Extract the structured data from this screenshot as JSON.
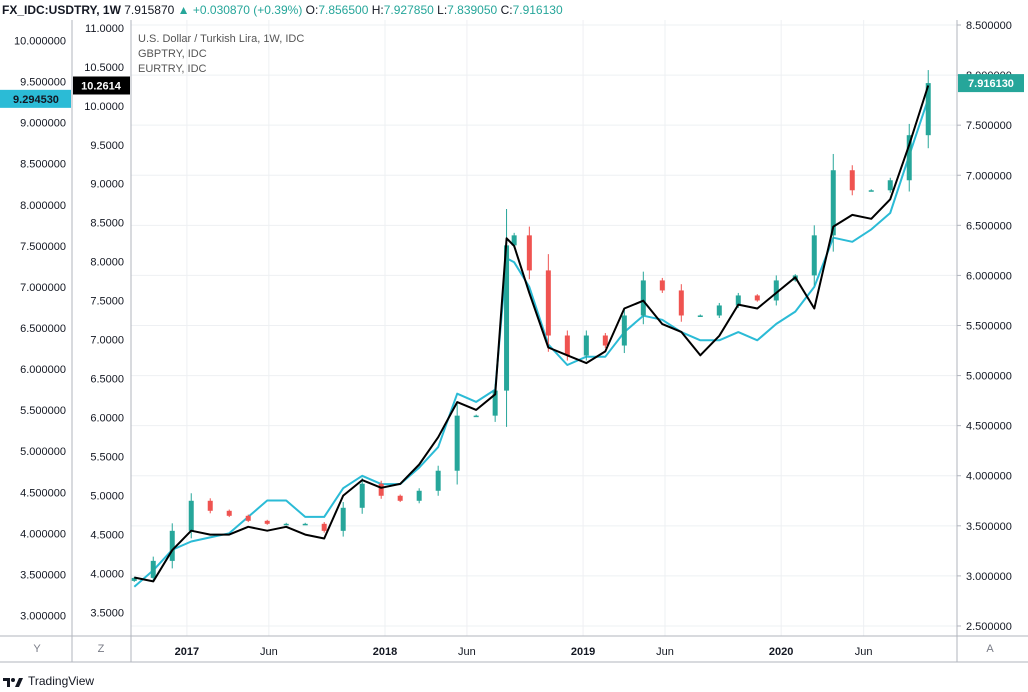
{
  "header": {
    "symbol": "FX_IDC:USDTRY, 1W",
    "last": "7.915870",
    "change_arrow": "▲",
    "change": "+0.030870 (+0.39%)",
    "o_label": "O:",
    "o_value": "7.856500",
    "h_label": "H:",
    "h_value": "7.927850",
    "l_label": "L:",
    "l_value": "7.839050",
    "c_label": "C:",
    "c_value": "7.916130"
  },
  "legend": [
    "U.S. Dollar / Turkish Lira, 1W, IDC",
    "GBPTRY, IDC",
    "EURTRY, IDC"
  ],
  "footer": {
    "brand": "TradingView"
  },
  "colors": {
    "up": "#26a69a",
    "down": "#ef5350",
    "gbp": "#000000",
    "eur": "#2bbbd6",
    "grid": "#eef0f3",
    "axis_line": "#b2b5be"
  },
  "chart_data": {
    "type": "line",
    "title": "U.S. Dollar / Turkish Lira, 1W, IDC",
    "x_ticks": [
      "2017",
      "Jun",
      "2018",
      "Jun",
      "2019",
      "Jun",
      "2020",
      "Jun"
    ],
    "axes": {
      "right": {
        "series": "U.S. Dollar / Turkish Lira (candles)",
        "ylim": [
          2.4,
          8.55
        ],
        "ticks": [
          "8.500000",
          "8.000000",
          "7.500000",
          "7.000000",
          "6.500000",
          "6.000000",
          "5.500000",
          "5.000000",
          "4.500000",
          "4.000000",
          "3.500000",
          "3.000000",
          "2.500000"
        ]
      },
      "left_y": {
        "series": "EURTRY, IDC",
        "ylim": [
          2.75,
          10.25
        ],
        "ticks": [
          "10.000000",
          "9.500000",
          "9.000000",
          "8.500000",
          "8.000000",
          "7.500000",
          "7.000000",
          "6.500000",
          "6.000000",
          "5.500000",
          "5.000000",
          "4.500000",
          "4.000000",
          "3.500000",
          "3.000000"
        ]
      },
      "left_z": {
        "series": "GBPTRY, IDC",
        "ylim": [
          3.2,
          11.1
        ],
        "ticks": [
          "11.0000",
          "10.5000",
          "10.0000",
          "9.5000",
          "9.0000",
          "8.5000",
          "8.0000",
          "7.5000",
          "7.0000",
          "6.5000",
          "6.0000",
          "5.5000",
          "5.0000",
          "4.5000",
          "4.0000",
          "3.5000"
        ]
      }
    },
    "axis_letters": {
      "left_y": "Y",
      "left_z": "Z",
      "right": "A"
    },
    "last_labels": {
      "right": "7.916130",
      "left_y": "9.294530",
      "left_z": "10.2614"
    },
    "series": [
      {
        "name": "U.S. Dollar / Turkish Lira, 1W, IDC",
        "axis": "right",
        "style": "candlestick",
        "x": [
          "2016-09-26",
          "2016-10-31",
          "2016-12-05",
          "2017-01-09",
          "2017-02-13",
          "2017-03-20",
          "2017-04-24",
          "2017-05-29",
          "2017-07-03",
          "2017-08-07",
          "2017-09-11",
          "2017-10-16",
          "2017-11-20",
          "2017-12-25",
          "2018-01-29",
          "2018-03-05",
          "2018-04-09",
          "2018-05-14",
          "2018-06-18",
          "2018-07-23",
          "2018-08-13",
          "2018-08-27",
          "2018-09-24",
          "2018-10-29",
          "2018-12-03",
          "2019-01-07",
          "2019-02-11",
          "2019-03-18",
          "2019-04-22",
          "2019-05-27",
          "2019-07-01",
          "2019-08-05",
          "2019-09-09",
          "2019-10-14",
          "2019-11-18",
          "2019-12-23",
          "2020-01-27",
          "2020-03-02",
          "2020-04-06",
          "2020-05-11",
          "2020-06-15",
          "2020-07-20",
          "2020-08-24",
          "2020-09-28"
        ],
        "values": [
          2.98,
          3.15,
          3.45,
          3.75,
          3.65,
          3.6,
          3.55,
          3.52,
          3.52,
          3.52,
          3.45,
          3.68,
          3.92,
          3.8,
          3.75,
          3.85,
          4.05,
          4.6,
          4.6,
          4.85,
          6.3,
          6.4,
          6.05,
          5.4,
          5.2,
          5.4,
          5.3,
          5.6,
          5.95,
          5.85,
          5.6,
          5.6,
          5.7,
          5.8,
          5.75,
          5.95,
          6.0,
          6.4,
          7.05,
          6.85,
          6.85,
          6.95,
          7.4,
          7.92
        ]
      },
      {
        "name": "GBPTRY, IDC",
        "axis": "left_z",
        "x": [
          "2016-09-26",
          "2016-10-31",
          "2016-12-05",
          "2017-01-09",
          "2017-02-13",
          "2017-03-20",
          "2017-04-24",
          "2017-05-29",
          "2017-07-03",
          "2017-08-07",
          "2017-09-11",
          "2017-10-16",
          "2017-11-20",
          "2017-12-25",
          "2018-01-29",
          "2018-03-05",
          "2018-04-09",
          "2018-05-14",
          "2018-06-18",
          "2018-07-23",
          "2018-08-13",
          "2018-08-27",
          "2018-09-24",
          "2018-10-29",
          "2018-12-03",
          "2019-01-07",
          "2019-02-11",
          "2019-03-18",
          "2019-04-22",
          "2019-05-27",
          "2019-07-01",
          "2019-08-05",
          "2019-09-09",
          "2019-10-14",
          "2019-11-18",
          "2019-12-23",
          "2020-01-27",
          "2020-03-02",
          "2020-04-06",
          "2020-05-11",
          "2020-06-15",
          "2020-07-20",
          "2020-08-24",
          "2020-09-28"
        ],
        "values": [
          3.95,
          3.9,
          4.3,
          4.55,
          4.5,
          4.5,
          4.6,
          4.55,
          4.6,
          4.5,
          4.45,
          5.0,
          5.2,
          5.1,
          5.15,
          5.4,
          5.75,
          6.2,
          6.1,
          6.3,
          8.3,
          8.2,
          7.6,
          6.9,
          6.8,
          6.7,
          6.85,
          7.4,
          7.5,
          7.2,
          7.1,
          6.8,
          7.05,
          7.45,
          7.4,
          7.6,
          7.8,
          7.4,
          8.45,
          8.6,
          8.55,
          8.8,
          9.5,
          10.26
        ]
      },
      {
        "name": "EURTRY, IDC",
        "axis": "left_y",
        "x": [
          "2016-09-26",
          "2016-10-31",
          "2016-12-05",
          "2017-01-09",
          "2017-02-13",
          "2017-03-20",
          "2017-04-24",
          "2017-05-29",
          "2017-07-03",
          "2017-08-07",
          "2017-09-11",
          "2017-10-16",
          "2017-11-20",
          "2017-12-25",
          "2018-01-29",
          "2018-03-05",
          "2018-04-09",
          "2018-05-14",
          "2018-06-18",
          "2018-07-23",
          "2018-08-13",
          "2018-08-27",
          "2018-09-24",
          "2018-10-29",
          "2018-12-03",
          "2019-01-07",
          "2019-02-11",
          "2019-03-18",
          "2019-04-22",
          "2019-05-27",
          "2019-07-01",
          "2019-08-05",
          "2019-09-09",
          "2019-10-14",
          "2019-11-18",
          "2019-12-23",
          "2020-01-27",
          "2020-03-02",
          "2020-04-06",
          "2020-05-11",
          "2020-06-15",
          "2020-07-20",
          "2020-08-24",
          "2020-09-28"
        ],
        "values": [
          3.35,
          3.55,
          3.8,
          3.9,
          3.95,
          4.0,
          4.2,
          4.4,
          4.4,
          4.2,
          4.2,
          4.55,
          4.7,
          4.6,
          4.6,
          4.8,
          5.05,
          5.7,
          5.6,
          5.75,
          7.35,
          7.3,
          7.0,
          6.3,
          6.05,
          6.15,
          6.15,
          6.45,
          6.65,
          6.6,
          6.45,
          6.35,
          6.35,
          6.45,
          6.35,
          6.55,
          6.7,
          7.0,
          7.6,
          7.55,
          7.7,
          7.9,
          8.6,
          9.29
        ]
      }
    ]
  }
}
